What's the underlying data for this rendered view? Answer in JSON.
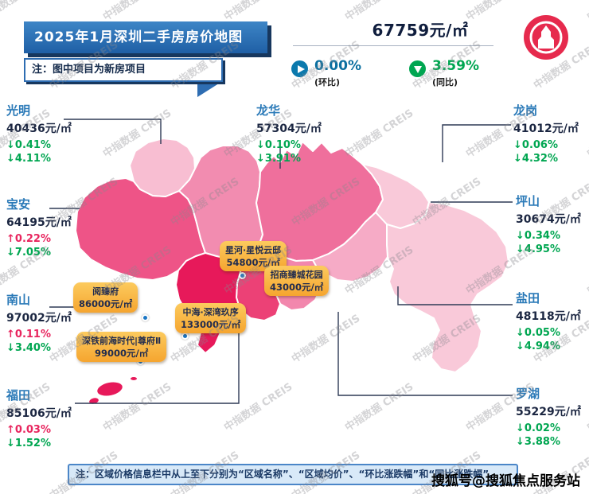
{
  "watermark": "中指数据 CREIS",
  "credit": "搜狐号@搜狐焦点服务站",
  "header": {
    "title": "2025年1月深圳二手房房价地图",
    "note": "注：图中项目为新房项目",
    "avg_price": "67759元/㎡",
    "mom_value": "0.00%",
    "mom_label": "(环比)",
    "yoy_value": "3.59%",
    "yoy_label": "(同比)"
  },
  "footer_note": "注：区域价格信息栏中从上至下分别为“区域名称”、“区域均价”、“环比涨跌幅”和“同比涨跌幅”。",
  "districts": [
    {
      "name": "光明",
      "price": "40436元/㎡",
      "mom": "↓0.41%",
      "mom_dir": "down",
      "yoy": "↓4.11%",
      "yoy_dir": "down",
      "color": "#f8bed2"
    },
    {
      "name": "龙华",
      "price": "57304元/㎡",
      "mom": "↓0.10%",
      "mom_dir": "down",
      "yoy": "↓3.91%",
      "yoy_dir": "down",
      "color": "#f28cb0"
    },
    {
      "name": "龙岗",
      "price": "41012元/㎡",
      "mom": "↓0.06%",
      "mom_dir": "down",
      "yoy": "↓4.32%",
      "yoy_dir": "down",
      "color": "#ef6f9c"
    },
    {
      "name": "宝安",
      "price": "64195元/㎡",
      "mom": "↑0.22%",
      "mom_dir": "up",
      "yoy": "↓7.05%",
      "yoy_dir": "down",
      "color": "#ee5487"
    },
    {
      "name": "坪山",
      "price": "30674元/㎡",
      "mom": "↓0.34%",
      "mom_dir": "down",
      "yoy": "↓4.95%",
      "yoy_dir": "down",
      "color": "#f9c9d9"
    },
    {
      "name": "南山",
      "price": "97002元/㎡",
      "mom": "↑0.11%",
      "mom_dir": "up",
      "yoy": "↓3.40%",
      "yoy_dir": "down",
      "color": "#e7195a"
    },
    {
      "name": "盐田",
      "price": "48118元/㎡",
      "mom": "↓0.05%",
      "mom_dir": "down",
      "yoy": "↓4.94%",
      "yoy_dir": "down",
      "color": "#f6abc6"
    },
    {
      "name": "福田",
      "price": "85106元/㎡",
      "mom": "↑0.03%",
      "mom_dir": "up",
      "yoy": "↓1.52%",
      "yoy_dir": "down",
      "color": "#ec4176"
    },
    {
      "name": "罗湖",
      "price": "55229元/㎡",
      "mom": "↓0.02%",
      "mom_dir": "down",
      "yoy": "↓3.88%",
      "yoy_dir": "down",
      "color": "#f287ad"
    }
  ],
  "regions": {
    "dapeng_color": "#f9c9d9"
  },
  "projects": [
    {
      "name": "星河·星悦云邸",
      "price": "54800元/㎡"
    },
    {
      "name": "招商臻城花园",
      "price": "43000元/㎡"
    },
    {
      "name": "阅臻府",
      "price": "86000元/㎡"
    },
    {
      "name": "中海·深湾玖序",
      "price": "133000元/㎡"
    },
    {
      "name": "深铁前海时代|尊府Ⅱ",
      "price": "99000元/㎡"
    }
  ]
}
